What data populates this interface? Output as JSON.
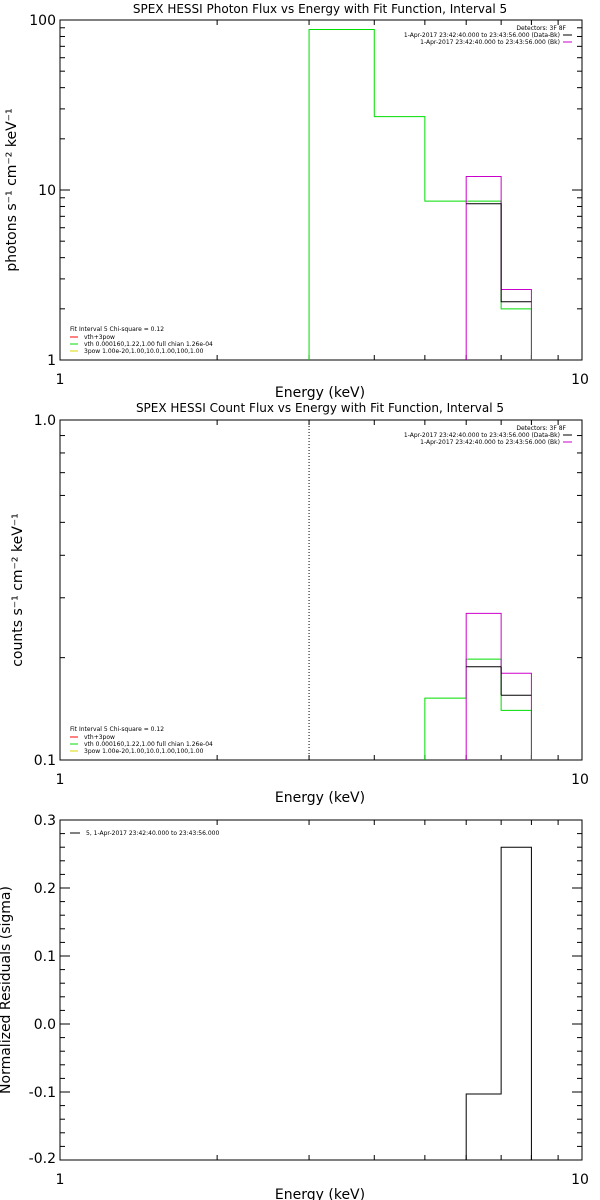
{
  "chart_data": [
    {
      "type": "line",
      "title": "SPEX HESSI Photon Flux vs Energy with Fit Function, Interval 5",
      "xlabel": "Energy (keV)",
      "ylabel": "photons s⁻¹ cm⁻² keV⁻¹",
      "xscale": "log",
      "yscale": "log",
      "xlim": [
        1,
        10
      ],
      "ylim": [
        1,
        100
      ],
      "xticks": [
        "1",
        "10"
      ],
      "yticks": [
        "1",
        "10",
        "100"
      ],
      "header": {
        "detectors": "Detectors: 3F 8F",
        "line1": "1-Apr-2017 23:42:40.000 to 23:43:56.000 (Data-Bk)",
        "line2": "1-Apr-2017 23:42:40.000 to 23:43:56.000 (Bk)"
      },
      "fit_text": {
        "line1": "Fit Interval 5   Chi-square = 0.12",
        "line2": "vth+3pow",
        "line3": "vth 0.000160,1.22,1.00  full chian 1.26e-04",
        "line4": "3pow 1.00e-20,1.00,10.0,1.00,100,1.00"
      },
      "series": [
        {
          "name": "",
          "color": "#00dd00",
          "step_edges": [
            3,
            4,
            5,
            6,
            7,
            8
          ],
          "values": [
            1,
            88,
            27,
            8.6,
            8.6,
            2.0
          ]
        },
        {
          "name": "",
          "color": "#cc00cc",
          "step_edges": [
            6,
            7,
            7,
            8
          ],
          "values": [
            12,
            2.6
          ]
        },
        {
          "name": "",
          "color": "#000000",
          "step_edges": [
            6,
            7,
            7,
            8
          ],
          "values": [
            8.3,
            2.2
          ]
        }
      ]
    },
    {
      "type": "line",
      "title": "SPEX HESSI Count Flux vs Energy with Fit Function, Interval 5",
      "xlabel": "Energy (keV)",
      "ylabel": "counts s⁻¹ cm⁻² keV⁻¹",
      "xscale": "log",
      "yscale": "log",
      "xlim": [
        1,
        10
      ],
      "ylim": [
        0.1,
        1.0
      ],
      "xticks": [
        "1",
        "10"
      ],
      "yticks": [
        "0.1",
        "1.0"
      ],
      "vline_x": 3,
      "header": {
        "detectors": "Detectors: 3F 8F",
        "line1": "1-Apr-2017 23:42:40.000 to 23:43:56.000 (Data-Bk)",
        "line2": "1-Apr-2017 23:42:40.000 to 23:43:56.000 (Bk)"
      },
      "fit_text": {
        "line1": "Fit Interval 5   Chi-square = 0.12",
        "line2": "vth+3pow",
        "line3": "vth 0.000160,1.22,1.00  full chian 1.26e-04",
        "line4": "3pow 1.00e-20,1.00,10.0,1.00,100,1.00"
      },
      "series": [
        {
          "name": "",
          "color": "#00dd00",
          "steps": [
            [
              5,
              6,
              0.152
            ],
            [
              6,
              7,
              0.198
            ],
            [
              7,
              8,
              0.14
            ]
          ]
        },
        {
          "name": "",
          "color": "#cc00cc",
          "steps": [
            [
              6,
              7,
              0.27
            ],
            [
              7,
              8,
              0.18
            ]
          ]
        },
        {
          "name": "",
          "color": "#000000",
          "steps": [
            [
              6,
              7,
              0.188
            ],
            [
              7,
              8,
              0.155
            ]
          ]
        }
      ]
    },
    {
      "type": "line",
      "title": "",
      "xlabel": "Energy (keV)",
      "ylabel": "Normalized Residuals (sigma)",
      "xscale": "log",
      "yscale": "linear",
      "xlim": [
        1,
        10
      ],
      "ylim": [
        -0.2,
        0.3
      ],
      "xticks": [
        "1",
        "10"
      ],
      "yticks": [
        "-0.2",
        "-0.1",
        "0.0",
        "0.1",
        "0.2",
        "0.3"
      ],
      "legend_text": "5,  1-Apr-2017 23:42:40.000 to 23:43:56.000",
      "series": [
        {
          "name": "",
          "color": "#000000",
          "steps": [
            [
              6,
              7,
              -0.103
            ],
            [
              7,
              8,
              0.26
            ]
          ]
        }
      ]
    }
  ]
}
